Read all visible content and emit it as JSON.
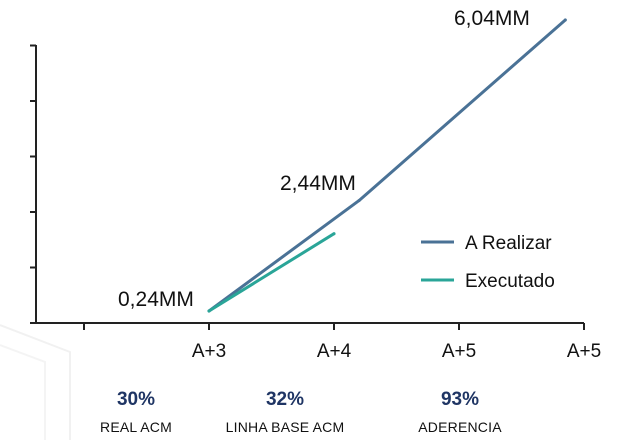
{
  "chart_data": {
    "type": "line",
    "categories": [
      "",
      "A+3",
      "A+4",
      "A+5",
      "A+5"
    ],
    "series": [
      {
        "name": "A Realizar",
        "color": "#4a7296",
        "x": [
          1.0,
          2.2,
          3.85
        ],
        "y": [
          0.24,
          2.44,
          6.04
        ]
      },
      {
        "name": "Executado",
        "color": "#2aa598",
        "x": [
          1.0,
          2.0
        ],
        "y": [
          0.24,
          1.78
        ]
      }
    ],
    "data_labels": [
      "0,24MM",
      "2,44MM",
      "6,04MM"
    ],
    "title": "",
    "xlabel": "",
    "ylabel": "",
    "xlim": [
      0,
      4
    ],
    "ylim": [
      0,
      6.0
    ],
    "y_ticks": 6,
    "grid": false,
    "legend": "right"
  },
  "kpis": [
    {
      "value": "30%",
      "label": "REAL ACM"
    },
    {
      "value": "32%",
      "label": "LINHA BASE ACM"
    },
    {
      "value": "93%",
      "label": "ADERENCIA"
    }
  ]
}
